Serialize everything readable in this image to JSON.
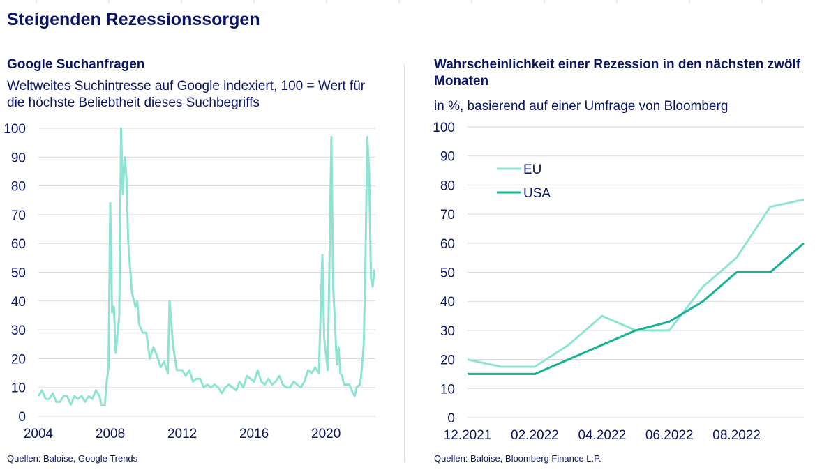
{
  "page_title": "Steigenden Rezessionssorgen",
  "colors": {
    "text": "#0a1464",
    "grid": "#d9d9d9",
    "light_teal": "#8fe3d2",
    "teal": "#16b293"
  },
  "chart_data": [
    {
      "type": "line",
      "title": "Google Suchanfragen",
      "subtitle": "Weltweites Suchintresse auf Google indexiert, 100 = Wert für die höchste Beliebtheit dieses Suchbegriffs",
      "source": "Quellen: Baloise, Google Trends",
      "xlabel": "",
      "ylabel": "",
      "xlim": [
        2004,
        2022.75
      ],
      "ylim": [
        0,
        100
      ],
      "x_ticks": [
        "2004",
        "2008",
        "2012",
        "2016",
        "2020"
      ],
      "y_ticks": [
        0,
        10,
        20,
        30,
        40,
        50,
        60,
        70,
        80,
        90,
        100
      ],
      "grid": true,
      "series": [
        {
          "color": "#8fe3d2",
          "points": [
            [
              2004.0,
              7
            ],
            [
              2004.2,
              9
            ],
            [
              2004.4,
              6
            ],
            [
              2004.6,
              6
            ],
            [
              2004.8,
              8
            ],
            [
              2005.0,
              5
            ],
            [
              2005.2,
              5
            ],
            [
              2005.4,
              7
            ],
            [
              2005.6,
              7
            ],
            [
              2005.8,
              4
            ],
            [
              2006.0,
              7
            ],
            [
              2006.2,
              6
            ],
            [
              2006.4,
              7
            ],
            [
              2006.6,
              5
            ],
            [
              2006.8,
              7
            ],
            [
              2007.0,
              6
            ],
            [
              2007.2,
              9
            ],
            [
              2007.4,
              7
            ],
            [
              2007.5,
              4
            ],
            [
              2007.7,
              4
            ],
            [
              2007.8,
              12
            ],
            [
              2007.9,
              17
            ],
            [
              2008.0,
              74
            ],
            [
              2008.1,
              36
            ],
            [
              2008.2,
              38
            ],
            [
              2008.3,
              22
            ],
            [
              2008.4,
              28
            ],
            [
              2008.5,
              35
            ],
            [
              2008.6,
              100
            ],
            [
              2008.7,
              77
            ],
            [
              2008.8,
              90
            ],
            [
              2008.9,
              83
            ],
            [
              2009.0,
              60
            ],
            [
              2009.2,
              43
            ],
            [
              2009.4,
              38
            ],
            [
              2009.5,
              40
            ],
            [
              2009.6,
              32
            ],
            [
              2009.8,
              29
            ],
            [
              2010.0,
              29
            ],
            [
              2010.2,
              20
            ],
            [
              2010.4,
              24
            ],
            [
              2010.6,
              21
            ],
            [
              2010.8,
              17
            ],
            [
              2011.0,
              19
            ],
            [
              2011.2,
              15
            ],
            [
              2011.3,
              40
            ],
            [
              2011.5,
              24
            ],
            [
              2011.7,
              16
            ],
            [
              2012.0,
              16
            ],
            [
              2012.2,
              14
            ],
            [
              2012.4,
              16
            ],
            [
              2012.6,
              12
            ],
            [
              2012.8,
              13
            ],
            [
              2013.0,
              13
            ],
            [
              2013.2,
              10
            ],
            [
              2013.4,
              11
            ],
            [
              2013.6,
              10
            ],
            [
              2013.8,
              11
            ],
            [
              2014.0,
              10
            ],
            [
              2014.2,
              8
            ],
            [
              2014.4,
              10
            ],
            [
              2014.6,
              11
            ],
            [
              2014.8,
              10
            ],
            [
              2015.0,
              9
            ],
            [
              2015.2,
              12
            ],
            [
              2015.4,
              10
            ],
            [
              2015.6,
              14
            ],
            [
              2015.8,
              13
            ],
            [
              2016.0,
              12
            ],
            [
              2016.2,
              16
            ],
            [
              2016.4,
              12
            ],
            [
              2016.6,
              11
            ],
            [
              2016.8,
              13
            ],
            [
              2017.0,
              11
            ],
            [
              2017.2,
              12
            ],
            [
              2017.4,
              14
            ],
            [
              2017.6,
              11
            ],
            [
              2017.8,
              10
            ],
            [
              2018.0,
              10
            ],
            [
              2018.2,
              12
            ],
            [
              2018.4,
              11
            ],
            [
              2018.6,
              10
            ],
            [
              2018.8,
              12
            ],
            [
              2019.0,
              16
            ],
            [
              2019.2,
              15
            ],
            [
              2019.4,
              17
            ],
            [
              2019.6,
              15
            ],
            [
              2019.8,
              56
            ],
            [
              2019.9,
              27
            ],
            [
              2020.1,
              16
            ],
            [
              2020.3,
              97
            ],
            [
              2020.4,
              45
            ],
            [
              2020.5,
              33
            ],
            [
              2020.6,
              18
            ],
            [
              2020.7,
              24
            ],
            [
              2020.8,
              15
            ],
            [
              2020.9,
              14
            ],
            [
              2021.0,
              11
            ],
            [
              2021.3,
              11
            ],
            [
              2021.5,
              8
            ],
            [
              2021.6,
              7
            ],
            [
              2021.7,
              10
            ],
            [
              2021.9,
              11
            ],
            [
              2022.0,
              17
            ],
            [
              2022.1,
              25
            ],
            [
              2022.2,
              55
            ],
            [
              2022.3,
              97
            ],
            [
              2022.4,
              85
            ],
            [
              2022.5,
              48
            ],
            [
              2022.6,
              45
            ],
            [
              2022.7,
              51
            ]
          ]
        }
      ]
    },
    {
      "type": "line",
      "title": "Wahrscheinlichkeit einer Rezession in den nächsten zwölf Monaten",
      "subtitle": "in %, basierend auf einer Umfrage von Bloomberg",
      "source": "Quellen: Baloise, Bloomberg Finance L.P.",
      "xlabel": "",
      "ylabel": "",
      "categories": [
        "12.2021",
        "01.2022",
        "02.2022",
        "03.2022",
        "04.2022",
        "05.2022",
        "06.2022",
        "07.2022",
        "08.2022",
        "09.2022",
        "10.2022"
      ],
      "x_ticks": [
        "12.2021",
        "02.2022",
        "04.2022",
        "06.2022",
        "08.2022"
      ],
      "ylim": [
        0,
        100
      ],
      "y_ticks": [
        0,
        10,
        20,
        30,
        40,
        50,
        60,
        70,
        80,
        90,
        100
      ],
      "grid": true,
      "legend": "top-left",
      "series": [
        {
          "name": "EU",
          "color": "#8fe3d2",
          "values": [
            20,
            17.5,
            17.5,
            25,
            35,
            30,
            30,
            45,
            55,
            72.5,
            75
          ]
        },
        {
          "name": "USA",
          "color": "#16b293",
          "values": [
            15,
            15,
            15,
            20,
            25,
            30,
            33,
            40,
            50,
            50,
            60
          ]
        }
      ]
    }
  ]
}
